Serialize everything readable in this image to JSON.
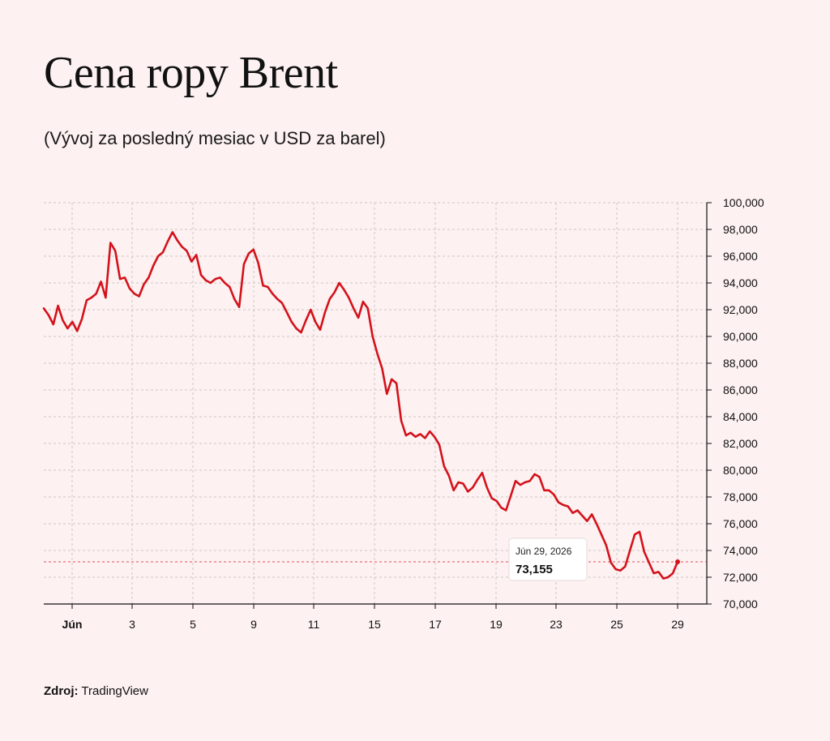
{
  "title": "Cena ropy Brent",
  "subtitle": "(Vývoj za posledný mesiac v USD za barel)",
  "source": {
    "label": "Zdroj:",
    "name": "TradingView"
  },
  "chart_data": {
    "type": "line",
    "title": "Cena ropy Brent",
    "subtitle": "(Vývoj za posledný mesiac v USD za barel)",
    "x_ticks": [
      "Jún",
      "3",
      "5",
      "9",
      "11",
      "15",
      "17",
      "19",
      "23",
      "25",
      "29"
    ],
    "y_ticks": [
      "70,000",
      "72,000",
      "74,000",
      "76,000",
      "78,000",
      "80,000",
      "82,000",
      "84,000",
      "86,000",
      "88,000",
      "90,000",
      "92,000",
      "94,000",
      "96,000",
      "98,000",
      "100,000"
    ],
    "ylim": [
      70,
      100
    ],
    "grid": true,
    "color": "#d3121b",
    "tooltip": {
      "date": "Jún 29, 2026",
      "value": "73,155"
    },
    "series": [
      {
        "values": [
          92.1,
          91.6,
          90.9,
          92.3,
          91.2,
          90.6,
          91.1,
          90.4,
          91.3,
          92.7,
          92.9,
          93.2,
          94.1,
          92.9,
          97.0,
          96.4,
          94.3,
          94.4,
          93.6,
          93.2,
          93.0,
          93.9,
          94.4,
          95.3,
          96.0,
          96.3,
          97.1,
          97.8,
          97.2,
          96.7,
          96.4,
          95.6,
          96.1,
          94.6,
          94.2,
          94.0,
          94.3,
          94.4,
          94.0,
          93.7,
          92.8,
          92.2,
          95.4,
          96.2,
          96.5,
          95.5,
          93.8,
          93.7,
          93.2,
          92.8,
          92.5,
          91.8,
          91.1,
          90.6,
          90.3,
          91.2,
          92.0,
          91.1,
          90.5,
          91.8,
          92.8,
          93.3,
          94.0,
          93.5,
          92.9,
          92.1,
          91.4,
          92.6,
          92.1,
          90.0,
          88.7,
          87.6,
          85.7,
          86.8,
          86.5,
          83.7,
          82.6,
          82.8,
          82.5,
          82.7,
          82.4,
          82.9,
          82.5,
          81.9,
          80.3,
          79.6,
          78.5,
          79.1,
          79.0,
          78.4,
          78.7,
          79.3,
          79.8,
          78.7,
          77.9,
          77.7,
          77.2,
          77.0,
          78.1,
          79.2,
          78.9,
          79.1,
          79.2,
          79.7,
          79.5,
          78.5,
          78.5,
          78.2,
          77.6,
          77.4,
          77.3,
          76.8,
          77.0,
          76.6,
          76.2,
          76.7,
          76.0,
          75.2,
          74.4,
          73.1,
          72.6,
          72.5,
          72.8,
          74.0,
          75.2,
          75.4,
          73.9,
          73.1,
          72.3,
          72.4,
          71.9,
          72.0,
          72.3,
          73.155
        ]
      }
    ]
  }
}
